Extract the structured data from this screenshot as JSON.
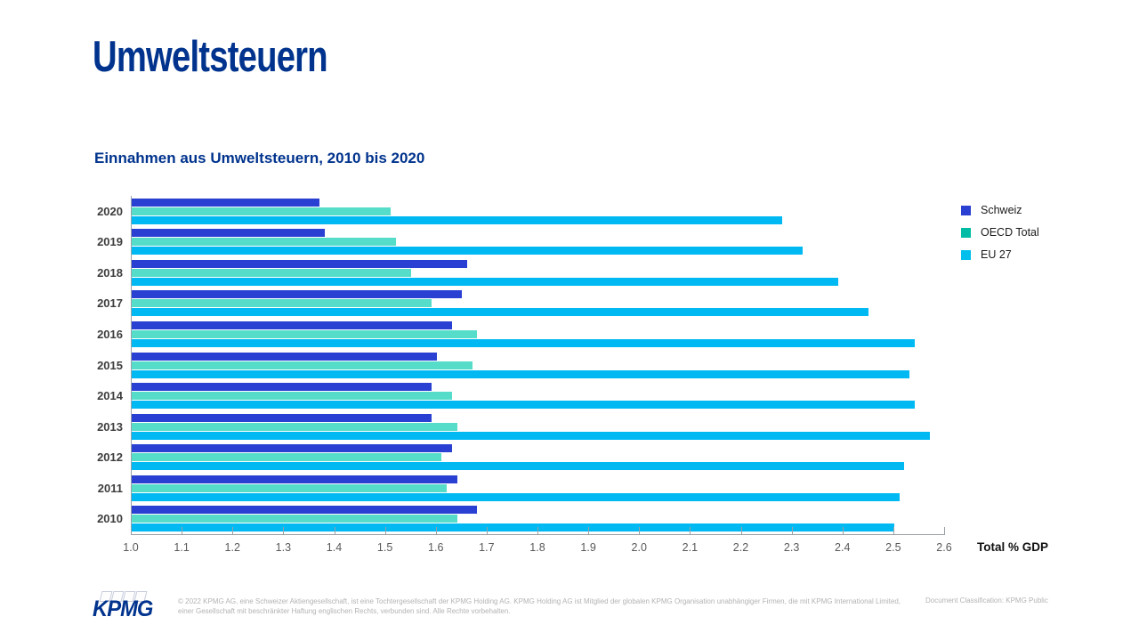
{
  "slide": {
    "title": "Umweltsteuern",
    "subtitle": "Einnahmen aus Umweltsteuern, 2010 bis 2020"
  },
  "chart_data": {
    "type": "bar",
    "orientation": "horizontal",
    "title": "Einnahmen aus Umweltsteuern, 2010 bis 2020",
    "categories": [
      "2020",
      "2019",
      "2018",
      "2017",
      "2016",
      "2015",
      "2014",
      "2013",
      "2012",
      "2011",
      "2010"
    ],
    "series": [
      {
        "name": "Schweiz",
        "color": "#2940d3",
        "legend_color": "#2940d3",
        "values": [
          1.37,
          1.38,
          1.66,
          1.65,
          1.63,
          1.6,
          1.59,
          1.59,
          1.63,
          1.64,
          1.68
        ]
      },
      {
        "name": "OECD Total",
        "color": "#55ddca",
        "legend_color": "#00bca4",
        "values": [
          1.51,
          1.52,
          1.55,
          1.59,
          1.68,
          1.67,
          1.63,
          1.64,
          1.61,
          1.62,
          1.64
        ]
      },
      {
        "name": "EU 27",
        "color": "#00b9f2",
        "legend_color": "#00bfec",
        "values": [
          2.28,
          2.32,
          2.39,
          2.45,
          2.54,
          2.53,
          2.54,
          2.57,
          2.52,
          2.51,
          2.5
        ]
      }
    ],
    "xlabel": "Total % GDP",
    "xlim": [
      1.0,
      2.6
    ],
    "xticks": [
      "1.0",
      "1.1",
      "1.2",
      "1.3",
      "1.4",
      "1.5",
      "1.6",
      "1.7",
      "1.8",
      "1.9",
      "2.0",
      "2.1",
      "2.2",
      "2.3",
      "2.4",
      "2.5",
      "2.6"
    ],
    "legend_position": "right-top",
    "grid": false,
    "axis_color": "#9aa0a6"
  },
  "footer": {
    "logo_text": "KPMG",
    "disclaimer_line1": "© 2022 KPMG AG, eine Schweizer Aktiengesellschaft, ist eine Tochtergesellschaft der KPMG Holding AG. KPMG Holding AG ist Mitglied der globalen KPMG Organisation",
    "disclaimer_line2": "unabhängiger Firmen, die mit KPMG International Limited, einer Gesellschaft mit beschränkter Haftung englischen Rechts, verbunden sind. Alle Rechte vorbehalten.",
    "classification": "Document Classification: KPMG Public"
  }
}
